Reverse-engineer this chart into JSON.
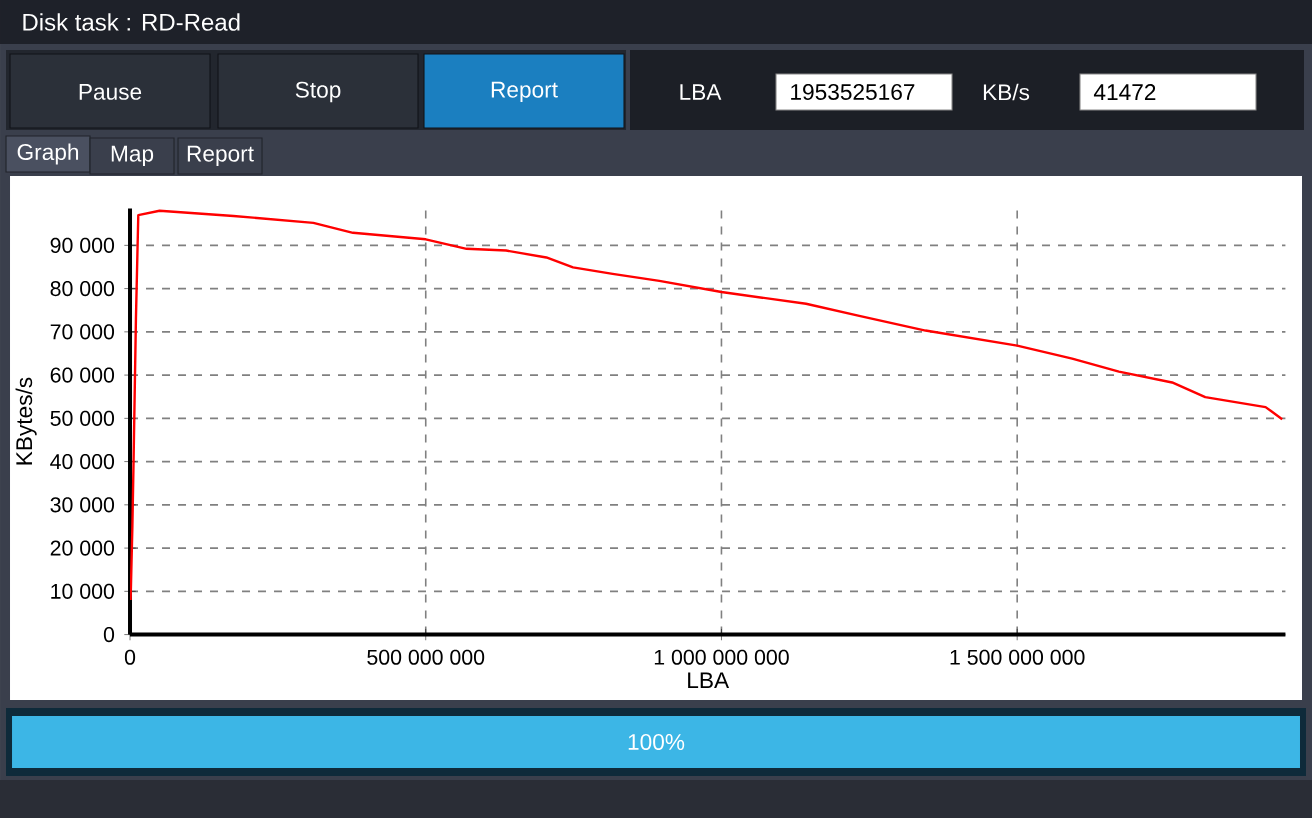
{
  "chart_data": {
    "type": "line",
    "title": "Disk task : RD-Read",
    "xlabel": "LBA",
    "ylabel": "KBytes/s",
    "x": [
      1000000,
      4000000,
      6000000,
      10000000,
      14000000,
      50000000,
      175000000,
      310000000,
      377000000,
      500000000,
      569000000,
      636000000,
      704000000,
      749000000,
      816000000,
      895000000,
      1000000000,
      1143000000,
      1233000000,
      1345000000,
      1500000000,
      1593000000,
      1672000000,
      1762000000,
      1818000000,
      1920000000,
      1948000000
    ],
    "series": [
      {
        "color": "#ff0000",
        "values": [
          8000,
          25000,
          40000,
          73000,
          97000,
          98000,
          96800,
          95200,
          92900,
          91400,
          89200,
          88800,
          87200,
          84900,
          83400,
          81800,
          79200,
          76500,
          73700,
          70300,
          66800,
          63800,
          60800,
          58300,
          54900,
          52600,
          49800
        ]
      }
    ],
    "xlim": [
      0,
      1953525167
    ],
    "ylim": [
      0,
      98500
    ],
    "xticks": [
      0,
      {
        "value": 500000000,
        "label": "500 000 000"
      },
      {
        "value": 1000000000,
        "label": "1 000 000 000"
      },
      {
        "value": 1500000000,
        "label": "1 500 000 000"
      }
    ],
    "yticks": [
      0,
      {
        "value": 10000,
        "label": "10 000"
      },
      {
        "value": 20000,
        "label": "20 000"
      },
      {
        "value": 30000,
        "label": "30 000"
      },
      {
        "value": 40000,
        "label": "40 000"
      },
      {
        "value": 50000,
        "label": "50 000"
      },
      {
        "value": 60000,
        "label": "60 000"
      },
      {
        "value": 70000,
        "label": "70 000"
      },
      {
        "value": 80000,
        "label": "80 000"
      },
      {
        "value": 90000,
        "label": "90 000"
      }
    ],
    "grid": true,
    "annotations": [
      "Pause",
      "Stop",
      "Report",
      "LBA",
      "1953525167",
      "KB/s",
      "41472",
      "Graph",
      "Map",
      "Report",
      "100%"
    ]
  }
}
